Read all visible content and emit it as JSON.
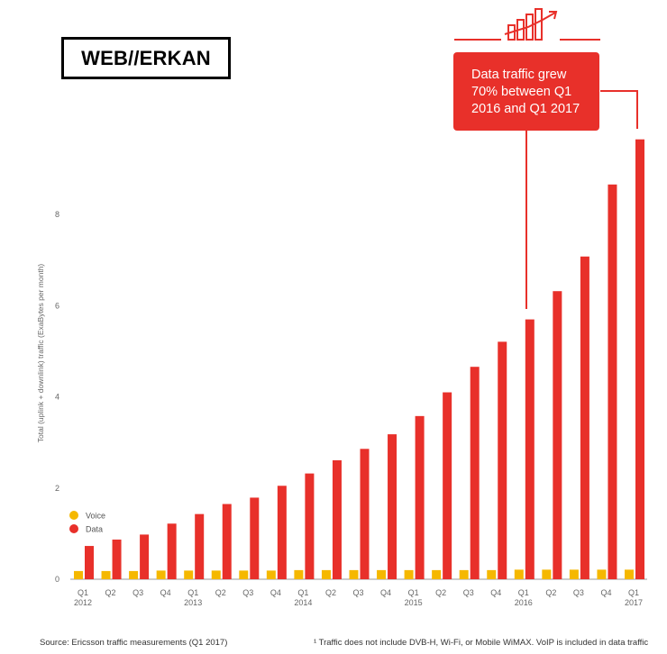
{
  "brand": {
    "text": "WEB//ERKAN"
  },
  "callout": {
    "lines": [
      "Data traffic grew",
      "70% between Q1",
      "2016 and Q1 2017"
    ]
  },
  "colors": {
    "voice": "#f5b800",
    "data": "#e8302a",
    "axis": "#666666"
  },
  "icon": "bar-growth-icon",
  "footer": {
    "source": "Source: Ericsson traffic measurements (Q1 2017)",
    "note": "¹ Traffic does not include DVB-H, Wi-Fi, or Mobile WiMAX. VoIP is included in data traffic"
  },
  "chart_data": {
    "type": "bar",
    "title": "",
    "xlabel": "",
    "ylabel": "Total (uplink + downlink) traffic (ExaBytes per month)",
    "ylim": [
      0,
      10
    ],
    "yticks": [
      0,
      2,
      4,
      6,
      8
    ],
    "grid": false,
    "legend": "bottom-left",
    "categories": [
      "Q1",
      "Q2",
      "Q3",
      "Q4",
      "Q1",
      "Q2",
      "Q3",
      "Q4",
      "Q1",
      "Q2",
      "Q3",
      "Q4",
      "Q1",
      "Q2",
      "Q3",
      "Q4",
      "Q1",
      "Q2",
      "Q3",
      "Q4",
      "Q1"
    ],
    "category_years": [
      "2012",
      "",
      "",
      "",
      "2013",
      "",
      "",
      "",
      "2014",
      "",
      "",
      "",
      "2015",
      "",
      "",
      "",
      "2016",
      "",
      "",
      "",
      "2017"
    ],
    "series": [
      {
        "name": "Voice",
        "values": [
          0.18,
          0.18,
          0.18,
          0.19,
          0.19,
          0.19,
          0.19,
          0.19,
          0.2,
          0.2,
          0.2,
          0.2,
          0.2,
          0.2,
          0.2,
          0.2,
          0.21,
          0.21,
          0.21,
          0.21,
          0.21
        ]
      },
      {
        "name": "Data",
        "values": [
          0.73,
          0.87,
          0.98,
          1.22,
          1.43,
          1.65,
          1.79,
          2.05,
          2.32,
          2.61,
          2.86,
          3.18,
          3.58,
          4.1,
          4.66,
          5.21,
          5.7,
          6.32,
          7.08,
          8.66,
          9.65
        ]
      }
    ]
  }
}
